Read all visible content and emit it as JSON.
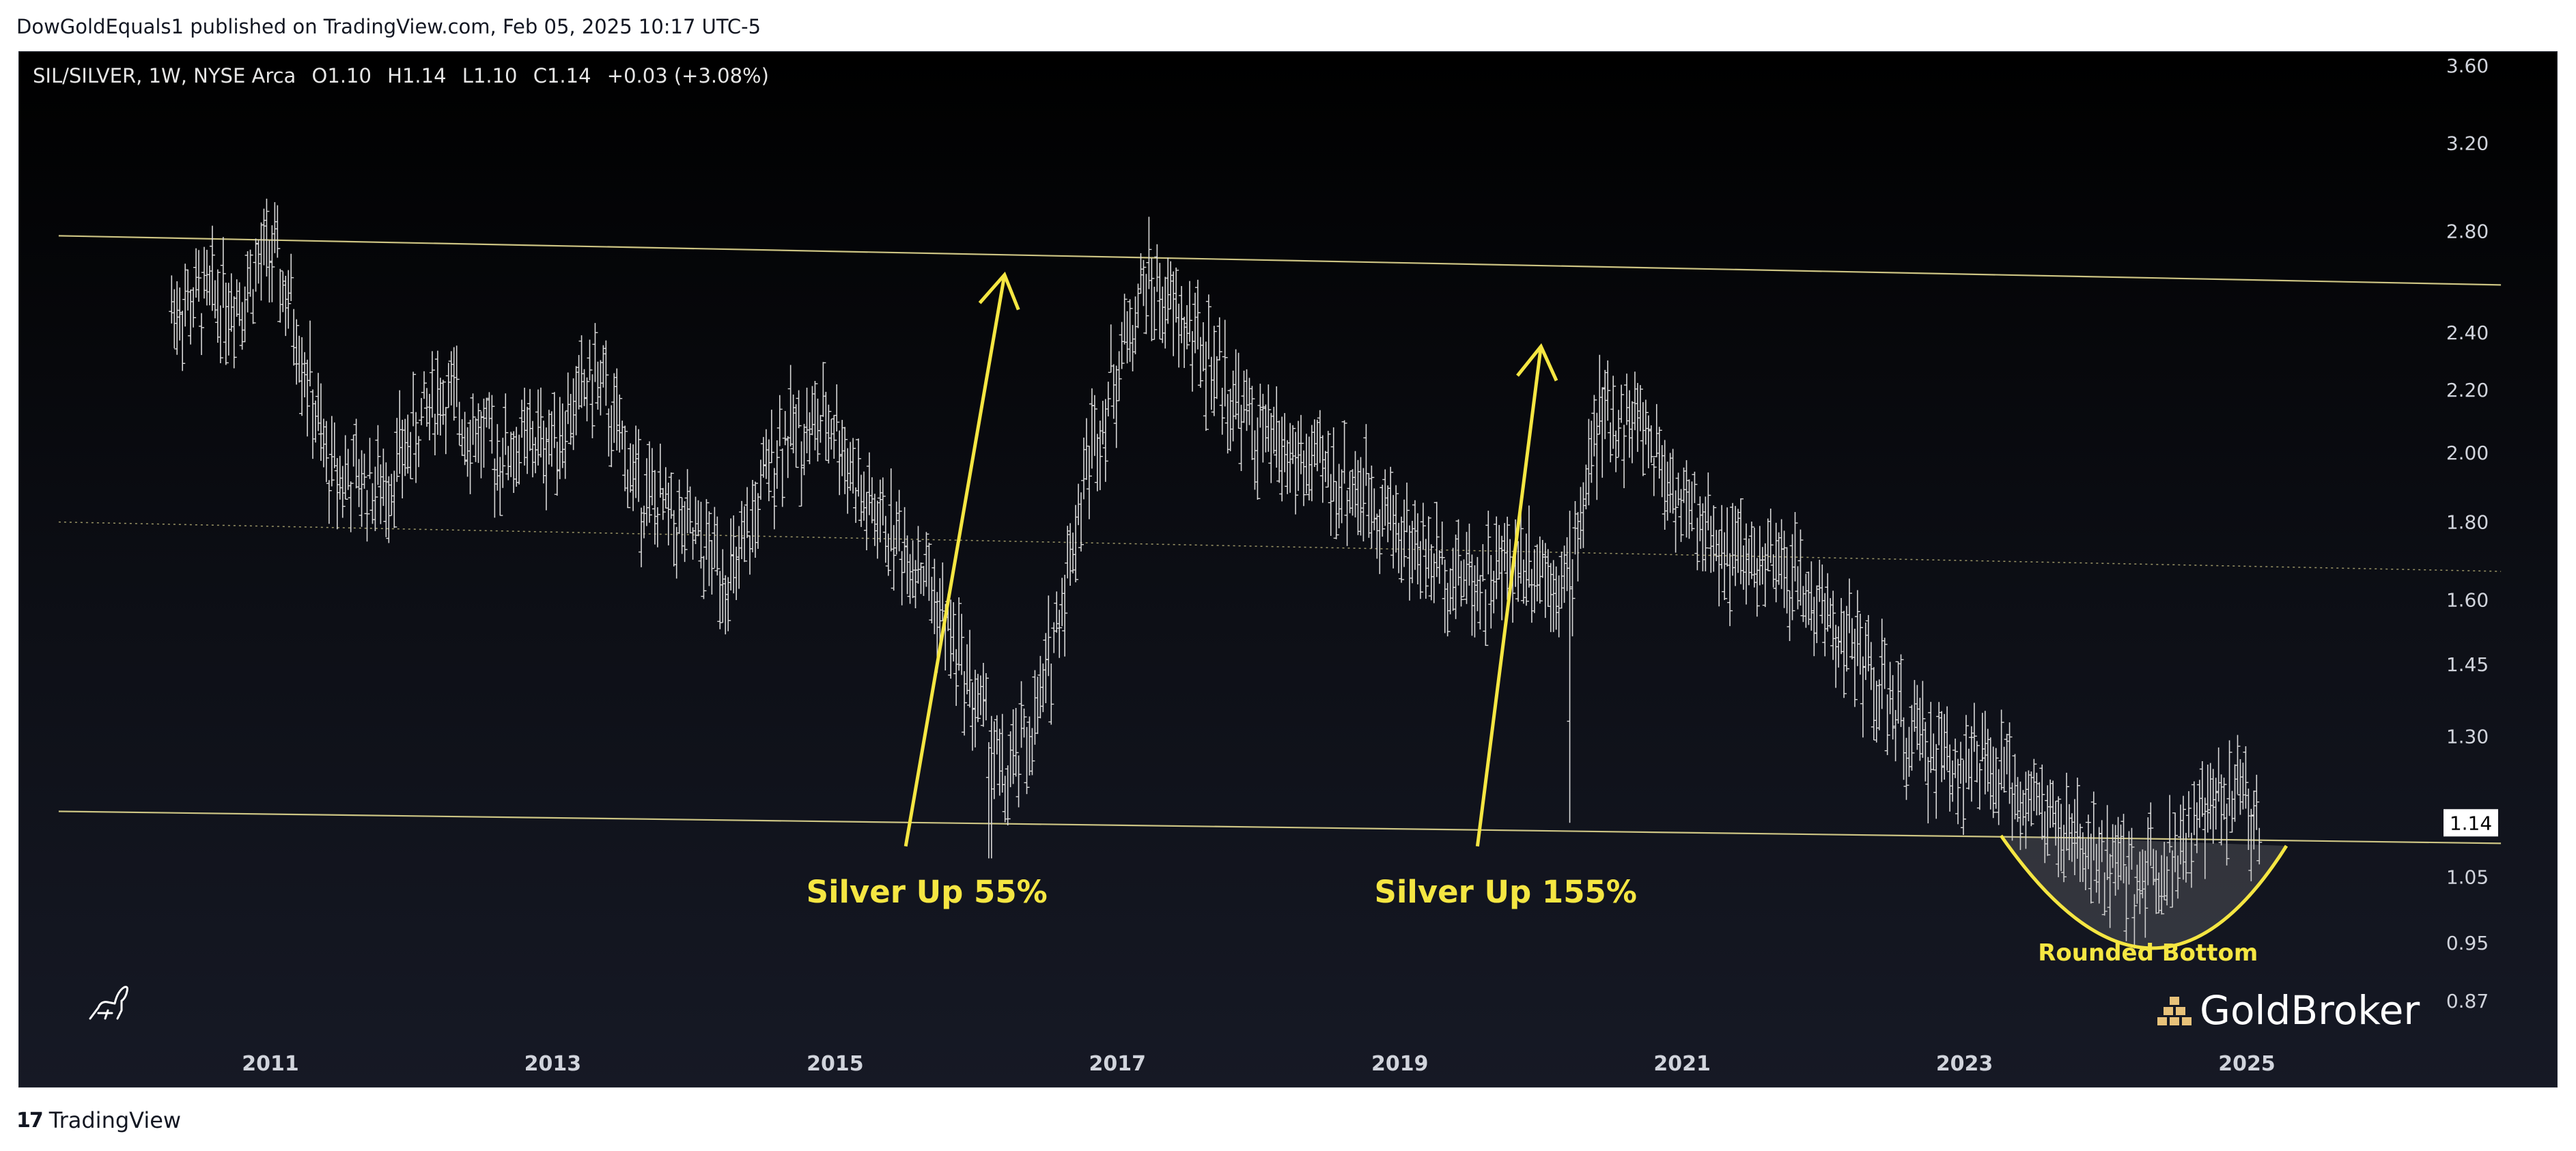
{
  "header": {
    "published_text": "DowGoldEquals1 published on TradingView.com, Feb 05, 2025 10:17 UTC-5"
  },
  "legend": {
    "symbol": "SIL/SILVER, 1W, NYSE Arca",
    "open": "O1.10",
    "high": "H1.14",
    "low": "L1.10",
    "close": "C1.14",
    "change": "+0.03 (+3.08%)"
  },
  "footer": {
    "brand": "TradingView"
  },
  "watermark": {
    "brand": "GoldBroker"
  },
  "colors": {
    "background": "#000000",
    "bars": "#d9d9d9",
    "trendline": "#d8cf8a",
    "annotation": "#f5e642",
    "price_label_bg": "#ffffff"
  },
  "chart_data": {
    "type": "ohlc",
    "title": "SIL/SILVER, 1W, NYSE Arca",
    "y_axis": {
      "scale": "log",
      "ticks": [
        "3.60",
        "3.20",
        "2.80",
        "2.40",
        "2.20",
        "2.00",
        "1.80",
        "1.60",
        "1.45",
        "1.30",
        "1.15",
        "1.05",
        "0.95",
        "0.87"
      ],
      "last_price_label": "1.14"
    },
    "x_axis": {
      "ticks": [
        "2011",
        "2013",
        "2015",
        "2017",
        "2019",
        "2021",
        "2023",
        "2025"
      ]
    },
    "approx_weekly_close_path": [
      {
        "x": 2010.3,
        "y": 2.5
      },
      {
        "x": 2010.8,
        "y": 2.55
      },
      {
        "x": 2011.0,
        "y": 2.72
      },
      {
        "x": 2011.2,
        "y": 2.4
      },
      {
        "x": 2011.4,
        "y": 1.95
      },
      {
        "x": 2011.8,
        "y": 1.9
      },
      {
        "x": 2012.2,
        "y": 2.2
      },
      {
        "x": 2012.6,
        "y": 2.0
      },
      {
        "x": 2013.0,
        "y": 2.05
      },
      {
        "x": 2013.3,
        "y": 2.25
      },
      {
        "x": 2013.6,
        "y": 1.9
      },
      {
        "x": 2014.0,
        "y": 1.75
      },
      {
        "x": 2014.3,
        "y": 1.65
      },
      {
        "x": 2014.6,
        "y": 2.05
      },
      {
        "x": 2015.0,
        "y": 2.1
      },
      {
        "x": 2015.2,
        "y": 1.85
      },
      {
        "x": 2015.6,
        "y": 1.7
      },
      {
        "x": 2015.9,
        "y": 1.45
      },
      {
        "x": 2016.1,
        "y": 1.3
      },
      {
        "x": 2016.2,
        "y": 1.2
      },
      {
        "x": 2016.45,
        "y": 1.35
      },
      {
        "x": 2016.8,
        "y": 2.0
      },
      {
        "x": 2017.2,
        "y": 2.6
      },
      {
        "x": 2017.6,
        "y": 2.35
      },
      {
        "x": 2018.0,
        "y": 2.05
      },
      {
        "x": 2018.4,
        "y": 1.95
      },
      {
        "x": 2018.8,
        "y": 1.88
      },
      {
        "x": 2019.2,
        "y": 1.7
      },
      {
        "x": 2019.6,
        "y": 1.65
      },
      {
        "x": 2019.9,
        "y": 1.72
      },
      {
        "x": 2020.2,
        "y": 1.65
      },
      {
        "x": 2020.4,
        "y": 2.1
      },
      {
        "x": 2020.7,
        "y": 2.1
      },
      {
        "x": 2021.0,
        "y": 1.85
      },
      {
        "x": 2021.4,
        "y": 1.7
      },
      {
        "x": 2021.8,
        "y": 1.65
      },
      {
        "x": 2022.2,
        "y": 1.5
      },
      {
        "x": 2022.6,
        "y": 1.3
      },
      {
        "x": 2023.0,
        "y": 1.25
      },
      {
        "x": 2023.4,
        "y": 1.2
      },
      {
        "x": 2023.8,
        "y": 1.1
      },
      {
        "x": 2024.2,
        "y": 1.05
      },
      {
        "x": 2024.6,
        "y": 1.12
      },
      {
        "x": 2024.9,
        "y": 1.2
      },
      {
        "x": 2025.1,
        "y": 1.14
      }
    ],
    "channel_lines": [
      {
        "name": "upper",
        "from": {
          "x": 2009.5,
          "y": 2.78
        },
        "to": {
          "x": 2026.8,
          "y": 2.58
        }
      },
      {
        "name": "middle",
        "from": {
          "x": 2009.5,
          "y": 1.8
        },
        "to": {
          "x": 2026.8,
          "y": 1.67
        }
      },
      {
        "name": "lower",
        "from": {
          "x": 2009.5,
          "y": 1.16
        },
        "to": {
          "x": 2026.8,
          "y": 1.105
        }
      }
    ],
    "annotations": [
      {
        "text": "Silver Up 55%",
        "arrow_from": {
          "x": 2015.5,
          "y": 1.1
        },
        "arrow_to": {
          "x": 2016.2,
          "y": 2.62
        },
        "label_at": {
          "x": 2015.65,
          "y": 1.01
        }
      },
      {
        "text": "Silver Up 155%",
        "arrow_from": {
          "x": 2019.55,
          "y": 1.1
        },
        "arrow_to": {
          "x": 2020.0,
          "y": 2.35
        },
        "label_at": {
          "x": 2019.75,
          "y": 1.01
        }
      },
      {
        "text": "Rounded Bottom",
        "label_at": {
          "x": 2024.3,
          "y": 0.925
        }
      }
    ]
  }
}
